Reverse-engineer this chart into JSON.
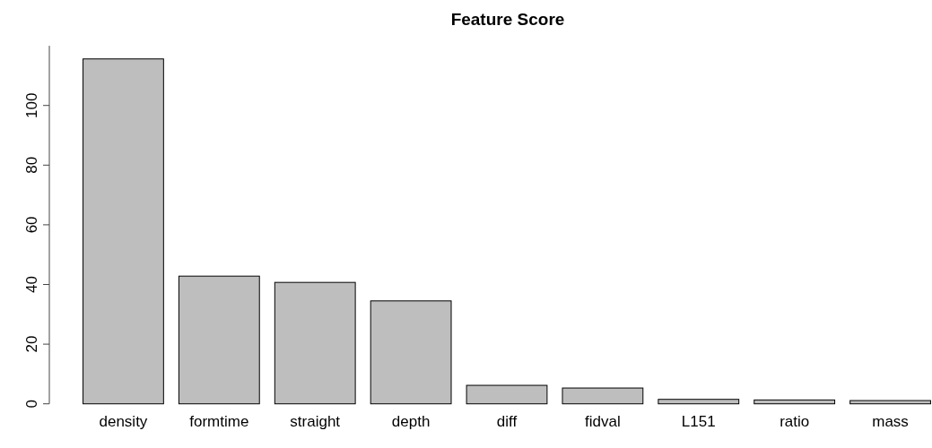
{
  "chart_data": {
    "type": "bar",
    "title": "Feature Score",
    "categories": [
      "density",
      "formtime",
      "straight",
      "depth",
      "diff",
      "fidval",
      "L151",
      "ratio",
      "mass"
    ],
    "values": [
      115.6,
      42.8,
      40.7,
      34.5,
      6.2,
      5.3,
      1.5,
      1.3,
      1.1
    ],
    "color": "#bebebe",
    "ylim": [
      0,
      120
    ],
    "yticks": [
      0,
      20,
      40,
      60,
      80,
      100
    ],
    "grid": false
  }
}
